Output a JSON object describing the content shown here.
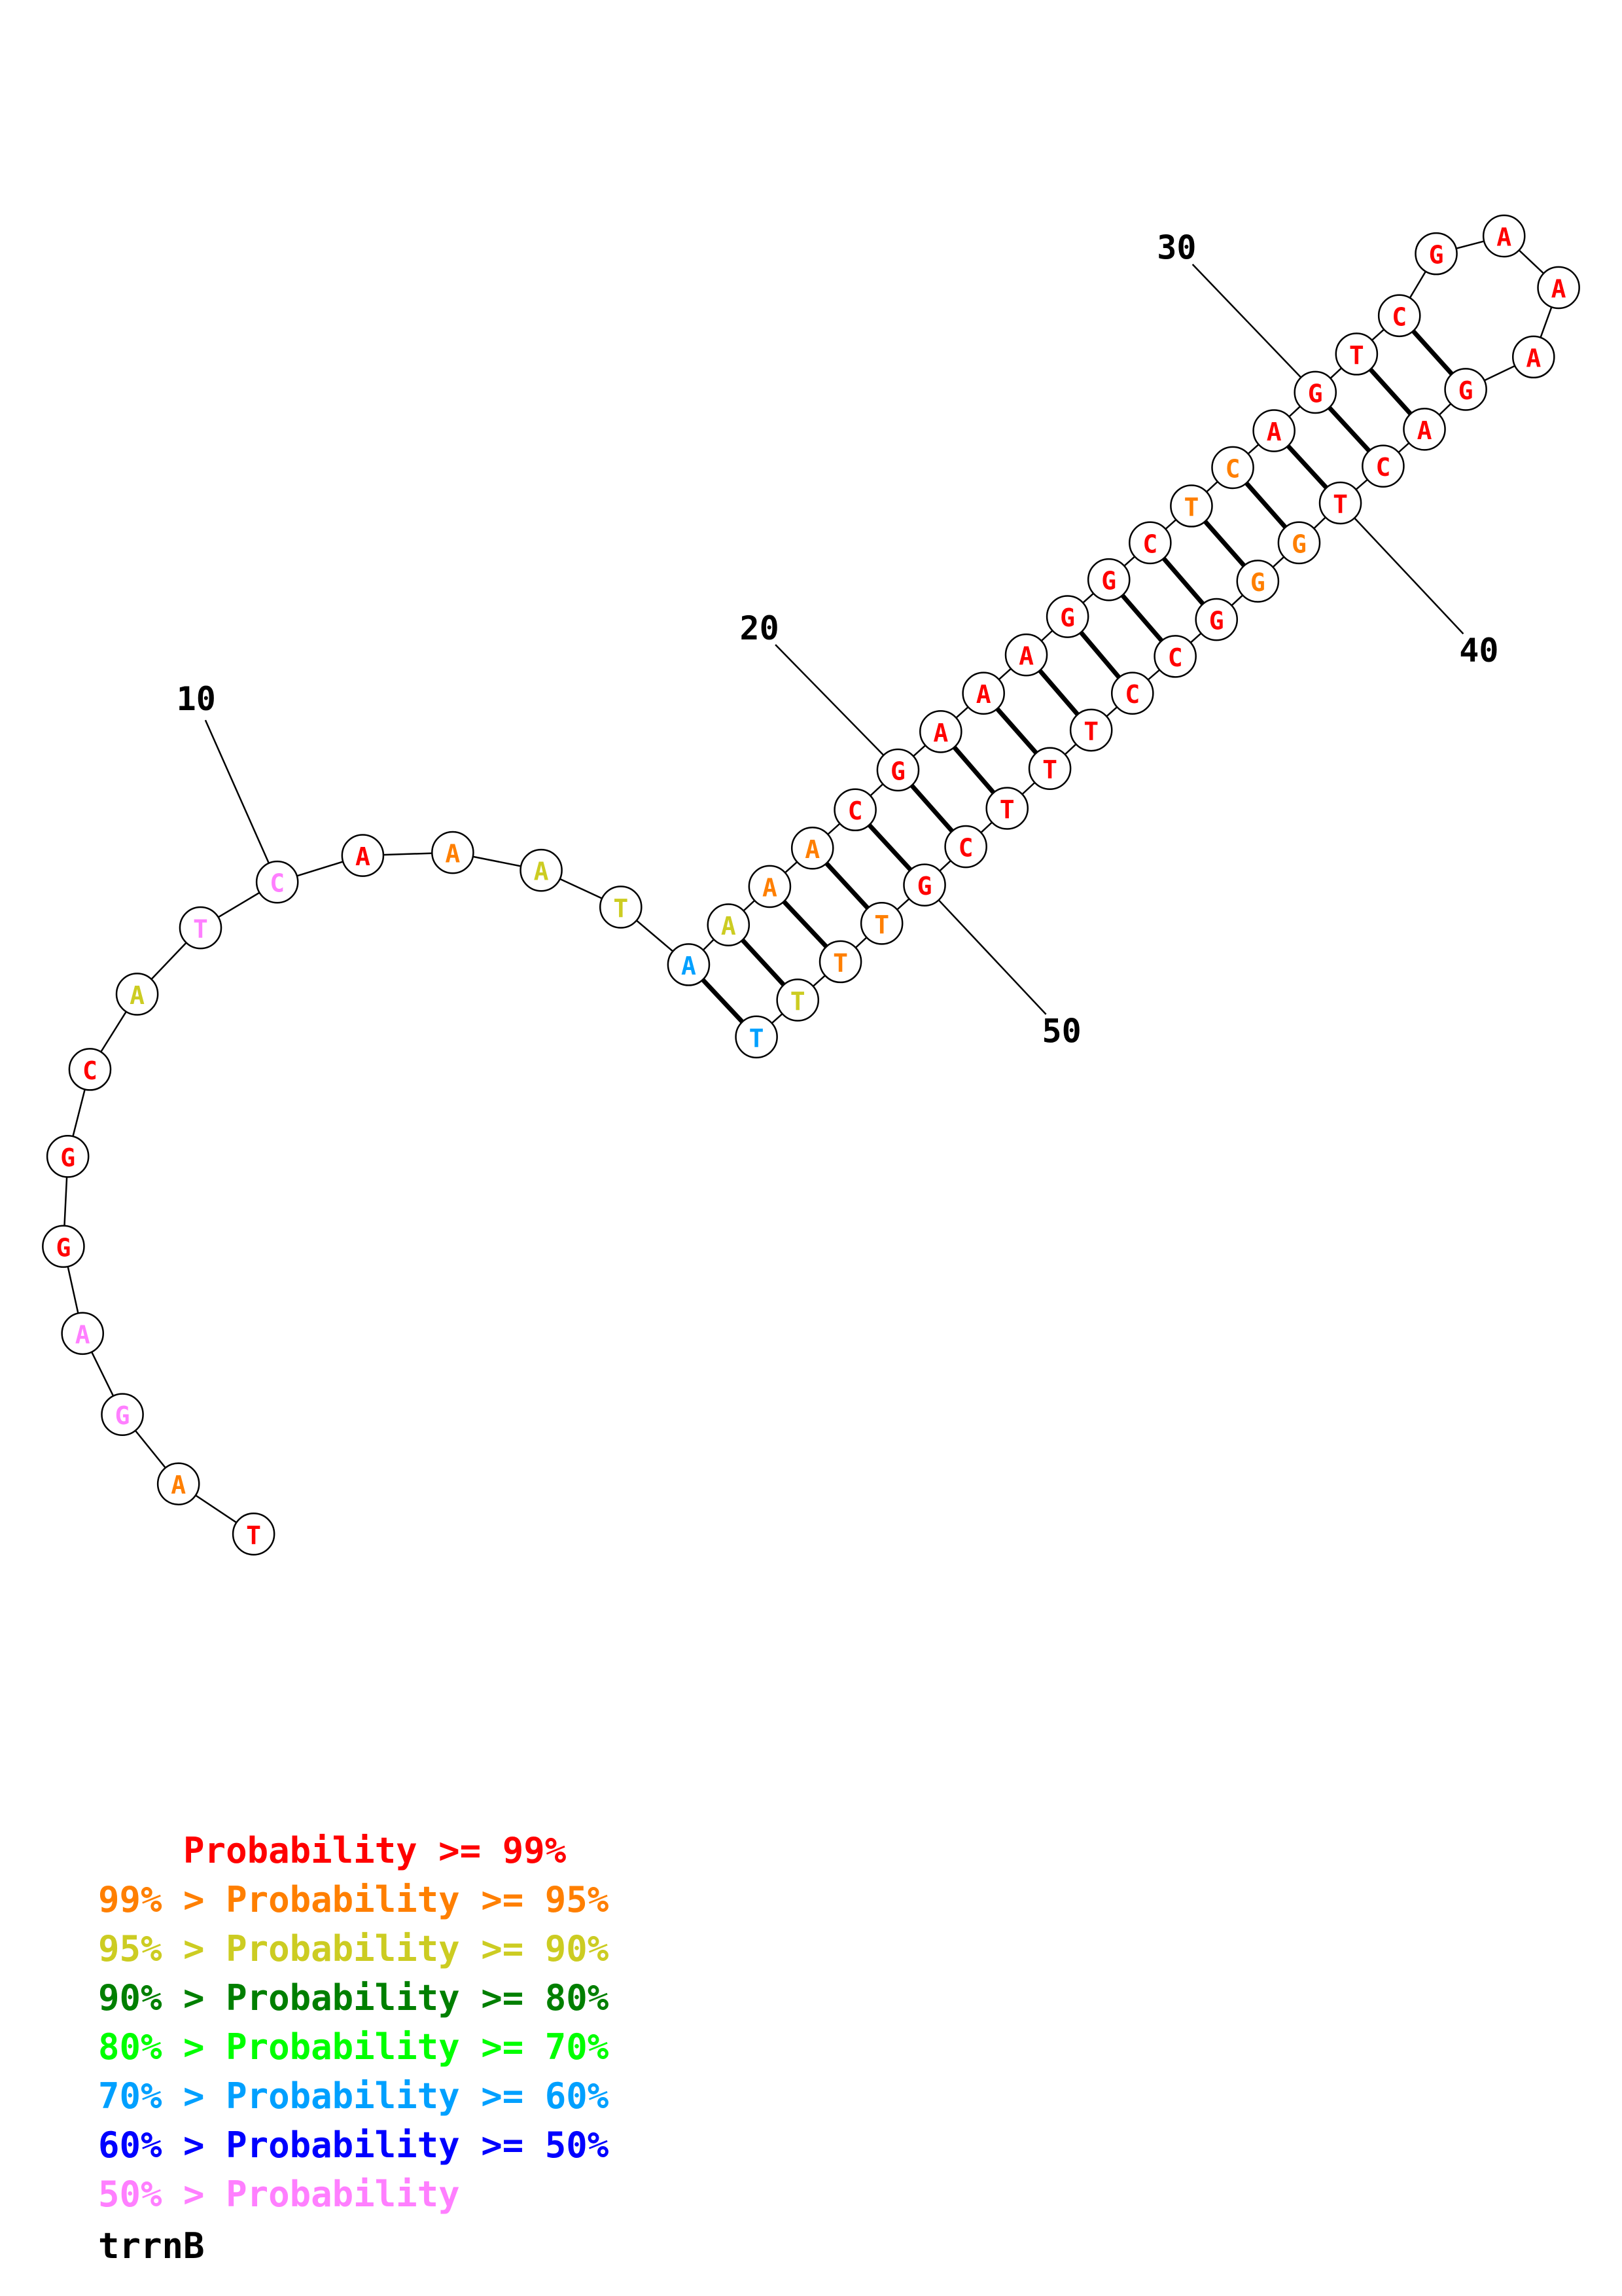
{
  "sequence_name": "trrnB",
  "colors": {
    "p99": "#ff0000",
    "p95": "#ff7f00",
    "p90": "#cccc22",
    "p80": "#007f00",
    "p70": "#00ff00",
    "p60": "#00a0ff",
    "p50": "#0000ff",
    "low": "#ff7fff"
  },
  "legend": [
    {
      "text": "    Probability >= 99%",
      "color_key": "p99"
    },
    {
      "text": "99% > Probability >= 95%",
      "color_key": "p95"
    },
    {
      "text": "95% > Probability >= 90%",
      "color_key": "p90"
    },
    {
      "text": "90% > Probability >= 80%",
      "color_key": "p80"
    },
    {
      "text": "80% > Probability >= 70%",
      "color_key": "p70"
    },
    {
      "text": "70% > Probability >= 60%",
      "color_key": "p60"
    },
    {
      "text": "60% > Probability >= 50%",
      "color_key": "p50"
    },
    {
      "text": "50% > Probability",
      "color_key": "low"
    }
  ],
  "position_labels": [
    "10",
    "20",
    "30",
    "40",
    "50"
  ],
  "nucleotides": [
    {
      "n": 1,
      "base": "T",
      "color_key": "p99"
    },
    {
      "n": 2,
      "base": "A",
      "color_key": "p95"
    },
    {
      "n": 3,
      "base": "G",
      "color_key": "low"
    },
    {
      "n": 4,
      "base": "A",
      "color_key": "low"
    },
    {
      "n": 5,
      "base": "G",
      "color_key": "p99"
    },
    {
      "n": 6,
      "base": "G",
      "color_key": "p99"
    },
    {
      "n": 7,
      "base": "C",
      "color_key": "p99"
    },
    {
      "n": 8,
      "base": "A",
      "color_key": "p90"
    },
    {
      "n": 9,
      "base": "T",
      "color_key": "low"
    },
    {
      "n": 10,
      "base": "C",
      "color_key": "low"
    },
    {
      "n": 11,
      "base": "A",
      "color_key": "p99"
    },
    {
      "n": 12,
      "base": "A",
      "color_key": "p95"
    },
    {
      "n": 13,
      "base": "A",
      "color_key": "p90"
    },
    {
      "n": 14,
      "base": "T",
      "color_key": "p90"
    },
    {
      "n": 15,
      "base": "A",
      "color_key": "p60"
    },
    {
      "n": 16,
      "base": "A",
      "color_key": "p90"
    },
    {
      "n": 17,
      "base": "A",
      "color_key": "p95"
    },
    {
      "n": 18,
      "base": "A",
      "color_key": "p95"
    },
    {
      "n": 19,
      "base": "C",
      "color_key": "p99"
    },
    {
      "n": 20,
      "base": "G",
      "color_key": "p99"
    },
    {
      "n": 21,
      "base": "A",
      "color_key": "p99"
    },
    {
      "n": 22,
      "base": "A",
      "color_key": "p99"
    },
    {
      "n": 23,
      "base": "A",
      "color_key": "p99"
    },
    {
      "n": 24,
      "base": "G",
      "color_key": "p99"
    },
    {
      "n": 25,
      "base": "G",
      "color_key": "p99"
    },
    {
      "n": 26,
      "base": "C",
      "color_key": "p99"
    },
    {
      "n": 27,
      "base": "T",
      "color_key": "p95"
    },
    {
      "n": 28,
      "base": "C",
      "color_key": "p95"
    },
    {
      "n": 29,
      "base": "A",
      "color_key": "p99"
    },
    {
      "n": 30,
      "base": "G",
      "color_key": "p99"
    },
    {
      "n": 31,
      "base": "T",
      "color_key": "p99"
    },
    {
      "n": 32,
      "base": "C",
      "color_key": "p99"
    },
    {
      "n": 33,
      "base": "G",
      "color_key": "p99"
    },
    {
      "n": 34,
      "base": "A",
      "color_key": "p99"
    },
    {
      "n": 35,
      "base": "A",
      "color_key": "p99"
    },
    {
      "n": 36,
      "base": "A",
      "color_key": "p99"
    },
    {
      "n": 37,
      "base": "G",
      "color_key": "p99"
    },
    {
      "n": 38,
      "base": "A",
      "color_key": "p99"
    },
    {
      "n": 39,
      "base": "C",
      "color_key": "p99"
    },
    {
      "n": 40,
      "base": "T",
      "color_key": "p99"
    },
    {
      "n": 41,
      "base": "G",
      "color_key": "p95"
    },
    {
      "n": 42,
      "base": "G",
      "color_key": "p95"
    },
    {
      "n": 43,
      "base": "G",
      "color_key": "p99"
    },
    {
      "n": 44,
      "base": "C",
      "color_key": "p99"
    },
    {
      "n": 45,
      "base": "C",
      "color_key": "p99"
    },
    {
      "n": 46,
      "base": "T",
      "color_key": "p99"
    },
    {
      "n": 47,
      "base": "T",
      "color_key": "p99"
    },
    {
      "n": 48,
      "base": "T",
      "color_key": "p99"
    },
    {
      "n": 49,
      "base": "C",
      "color_key": "p99"
    },
    {
      "n": 50,
      "base": "G",
      "color_key": "p99"
    },
    {
      "n": 51,
      "base": "T",
      "color_key": "p95"
    },
    {
      "n": 52,
      "base": "T",
      "color_key": "p95"
    },
    {
      "n": 53,
      "base": "T",
      "color_key": "p90"
    },
    {
      "n": 54,
      "base": "T",
      "color_key": "p60"
    }
  ],
  "base_pairs": [
    [
      15,
      54
    ],
    [
      16,
      53
    ],
    [
      17,
      52
    ],
    [
      18,
      51
    ],
    [
      19,
      50
    ],
    [
      20,
      49
    ],
    [
      21,
      48
    ],
    [
      22,
      47
    ],
    [
      23,
      46
    ],
    [
      24,
      45
    ],
    [
      25,
      44
    ],
    [
      26,
      43
    ],
    [
      27,
      42
    ],
    [
      28,
      41
    ],
    [
      29,
      40
    ],
    [
      30,
      39
    ],
    [
      31,
      38
    ],
    [
      32,
      37
    ]
  ]
}
